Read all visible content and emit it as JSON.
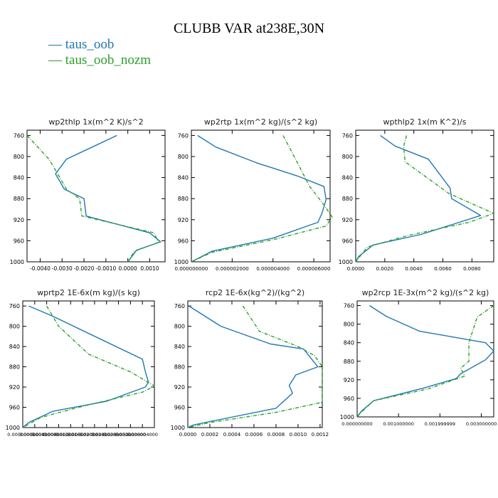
{
  "title": "CLUBB VAR at238E,30N",
  "legend": [
    {
      "label": "taus_oob",
      "color": "#1f77b4"
    },
    {
      "label": "taus_oob_nozm",
      "color": "#2ca02c"
    }
  ],
  "chart_data": [
    {
      "type": "line",
      "title": "wp2thlp   1x(m^2 K)/s^2",
      "ylim": [
        1000,
        750
      ],
      "yticks": [
        760,
        800,
        840,
        880,
        920,
        960,
        1000
      ],
      "xlim": [
        -0.0046,
        0.0017
      ],
      "xticks": [
        -0.004,
        -0.003,
        -0.002,
        -0.001,
        0.0,
        0.001
      ],
      "xtick_labels": [
        "-0.0040",
        "-0.0030",
        "-0.0020",
        "-0.0010",
        "0.0000",
        "0.0010"
      ],
      "series": [
        {
          "name": "taus_oob",
          "points": [
            [
              -0.0005,
              760
            ],
            [
              -0.0028,
              805
            ],
            [
              -0.0033,
              833
            ],
            [
              -0.0029,
              862
            ],
            [
              -0.002,
              880
            ],
            [
              -0.0019,
              913
            ],
            [
              0.001,
              945
            ],
            [
              0.0015,
              962
            ],
            [
              0.0004,
              978
            ],
            [
              0.0,
              1000
            ]
          ]
        },
        {
          "name": "taus_oob_nozm",
          "points": [
            [
              -0.0046,
              760
            ],
            [
              -0.0036,
              805
            ],
            [
              -0.0032,
              833
            ],
            [
              -0.0028,
              862
            ],
            [
              -0.0022,
              880
            ],
            [
              -0.0021,
              913
            ],
            [
              0.0012,
              945
            ],
            [
              0.0014,
              963
            ],
            [
              0.0003,
              980
            ],
            [
              0.0,
              1000
            ]
          ]
        }
      ]
    },
    {
      "type": "line",
      "title": "wp2rtp   1x(m^2 kg)/(s^2 kg)",
      "ylim": [
        1000,
        750
      ],
      "yticks": [
        760,
        800,
        840,
        880,
        920,
        960,
        1000
      ],
      "xlim": [
        0.0,
        6.8e-06
      ],
      "xticks": [
        0.0,
        2e-06,
        4e-06,
        6e-06
      ],
      "xtick_labels": [
        "0.000000000",
        "0.000002000",
        "0.000004000",
        "0.000006000"
      ],
      "series": [
        {
          "name": "taus_oob",
          "points": [
            [
              3e-07,
              760
            ],
            [
              1.2e-06,
              782
            ],
            [
              3.2e-06,
              812
            ],
            [
              5.2e-06,
              837
            ],
            [
              6.5e-06,
              857
            ],
            [
              6.6e-06,
              882
            ],
            [
              6.4e-06,
              908
            ],
            [
              6.2e-06,
              925
            ],
            [
              4e-06,
              955
            ],
            [
              1e-06,
              980
            ],
            [
              0.0,
              1000
            ]
          ]
        },
        {
          "name": "taus_oob_nozm",
          "points": [
            [
              4.5e-06,
              760
            ],
            [
              5.2e-06,
              812
            ],
            [
              5.8e-06,
              857
            ],
            [
              6.5e-06,
              892
            ],
            [
              6.9e-06,
              915
            ],
            [
              6.6e-06,
              932
            ],
            [
              4e-06,
              958
            ],
            [
              1e-06,
              982
            ],
            [
              0.0,
              1000
            ]
          ]
        }
      ]
    },
    {
      "type": "line",
      "title": "wpthlp2   1x(m K^2)/s",
      "ylim": [
        1000,
        750
      ],
      "yticks": [
        760,
        800,
        840,
        880,
        920,
        960,
        1000
      ],
      "xlim": [
        0.0,
        0.0095
      ],
      "xticks": [
        0.0,
        0.002,
        0.004,
        0.006,
        0.008
      ],
      "xtick_labels": [
        "0.0000",
        "0.0020",
        "0.0040",
        "0.0060",
        "0.0080"
      ],
      "series": [
        {
          "name": "taus_oob",
          "points": [
            [
              0.0017,
              760
            ],
            [
              0.0027,
              780
            ],
            [
              0.005,
              805
            ],
            [
              0.0065,
              860
            ],
            [
              0.0066,
              880
            ],
            [
              0.0086,
              912
            ],
            [
              0.0045,
              948
            ],
            [
              0.0012,
              968
            ],
            [
              0.0002,
              990
            ],
            [
              0.0,
              1000
            ]
          ]
        },
        {
          "name": "taus_oob_nozm",
          "points": [
            [
              0.0035,
              760
            ],
            [
              0.0033,
              780
            ],
            [
              0.0034,
              810
            ],
            [
              0.0064,
              870
            ],
            [
              0.0095,
              908
            ],
            [
              0.0078,
              925
            ],
            [
              0.0036,
              950
            ],
            [
              0.0008,
              972
            ],
            [
              0.0,
              1000
            ]
          ]
        }
      ]
    },
    {
      "type": "line",
      "title": "wprtp2   1E-6x(m kg)/(s kg)",
      "ylim": [
        1000,
        750
      ],
      "yticks": [
        760,
        800,
        840,
        880,
        920,
        960,
        1000
      ],
      "xlim": [
        0.0,
        4.4e-06
      ],
      "xticks": [
        0.0,
        4e-07,
        8e-07,
        1.2e-06,
        1.6e-06,
        2e-06,
        2.4e-06,
        2.8e-06,
        3.2e-06,
        3.6e-06,
        4e-06
      ],
      "xtick_labels": [
        "0.000000000",
        "0.000000400",
        "0.000000800",
        "0.000001200",
        "0.000001600",
        "0.000002000",
        "0.000002400",
        "0.000002800",
        "0.000003200",
        "0.000003600",
        "0.000004000"
      ],
      "series": [
        {
          "name": "taus_oob",
          "points": [
            [
              2e-07,
              760
            ],
            [
              1e-06,
              780
            ],
            [
              4e-06,
              865
            ],
            [
              4.1e-06,
              890
            ],
            [
              4.2e-06,
              910
            ],
            [
              4.1e-06,
              920
            ],
            [
              2.8e-06,
              948
            ],
            [
              1e-06,
              968
            ],
            [
              2e-07,
              990
            ],
            [
              0.0,
              1000
            ]
          ]
        },
        {
          "name": "taus_oob_nozm",
          "points": [
            [
              8e-07,
              760
            ],
            [
              1.2e-06,
              800
            ],
            [
              2.2e-06,
              855
            ],
            [
              3.6e-06,
              890
            ],
            [
              4.4e-06,
              918
            ],
            [
              4e-06,
              930
            ],
            [
              2e-06,
              958
            ],
            [
              6e-07,
              980
            ],
            [
              0.0,
              1000
            ]
          ]
        }
      ]
    },
    {
      "type": "line",
      "title": "rcp2   1E-6x(kg^2)/(kg^2)",
      "ylim": [
        1000,
        750
      ],
      "yticks": [
        760,
        800,
        840,
        880,
        920,
        960,
        1000
      ],
      "xlim": [
        0.0,
        0.00122
      ],
      "xticks": [
        0.0,
        0.0002,
        0.0004,
        0.0006,
        0.0008,
        0.001,
        0.0012
      ],
      "xtick_labels": [
        "0.0000",
        "0.0002",
        "0.0004",
        "0.0006",
        "0.0008",
        "0.0010",
        "0.0012"
      ],
      "series": [
        {
          "name": "taus_oob",
          "points": [
            [
              1e-05,
              760
            ],
            [
              0.0003,
              800
            ],
            [
              0.00075,
              835
            ],
            [
              0.00105,
              845
            ],
            [
              0.00118,
              880
            ],
            [
              0.00098,
              896
            ],
            [
              0.00092,
              917
            ],
            [
              0.00095,
              932
            ],
            [
              0.0008,
              962
            ],
            [
              0.0002,
              988
            ],
            [
              5e-05,
              995
            ],
            [
              0.0,
              1000
            ]
          ]
        },
        {
          "name": "taus_oob_nozm",
          "points": [
            [
              0.0005,
              760
            ],
            [
              0.00065,
              810
            ],
            [
              0.001,
              840
            ],
            [
              0.00115,
              858
            ],
            [
              0.00122,
              880
            ],
            [
              0.00122,
              950
            ],
            [
              0.0008,
              970
            ],
            [
              0.0002,
              990
            ],
            [
              0.0,
              1000
            ]
          ]
        }
      ]
    },
    {
      "type": "line",
      "title": "wp2rcp   1E-3x(m^2 kg)/(s^2 kg)",
      "ylim": [
        1000,
        750
      ],
      "yticks": [
        760,
        800,
        840,
        880,
        920,
        960,
        1000
      ],
      "xlim": [
        0.0,
        0.0033
      ],
      "xticks": [
        0.0,
        0.001,
        0.002,
        0.003
      ],
      "xtick_labels": [
        "0.000000000",
        "0.001000000",
        "0.001999999",
        "0.003000000"
      ],
      "series": [
        {
          "name": "taus_oob",
          "points": [
            [
              0.0003,
              760
            ],
            [
              0.0007,
              783
            ],
            [
              0.0015,
              815
            ],
            [
              0.0031,
              840
            ],
            [
              0.0033,
              858
            ],
            [
              0.0031,
              877
            ],
            [
              0.0025,
              907
            ],
            [
              0.0024,
              917
            ],
            [
              0.0016,
              938
            ],
            [
              0.0004,
              965
            ],
            [
              0.0001,
              988
            ],
            [
              0.0,
              1000
            ]
          ]
        },
        {
          "name": "taus_oob_nozm",
          "points": [
            [
              0.0033,
              760
            ],
            [
              0.0029,
              785
            ],
            [
              0.0027,
              840
            ],
            [
              0.0027,
              880
            ],
            [
              0.0025,
              895
            ],
            [
              0.0026,
              912
            ],
            [
              0.0017,
              940
            ],
            [
              0.0004,
              965
            ],
            [
              0.0001,
              990
            ],
            [
              0.0,
              1000
            ]
          ]
        }
      ]
    }
  ]
}
